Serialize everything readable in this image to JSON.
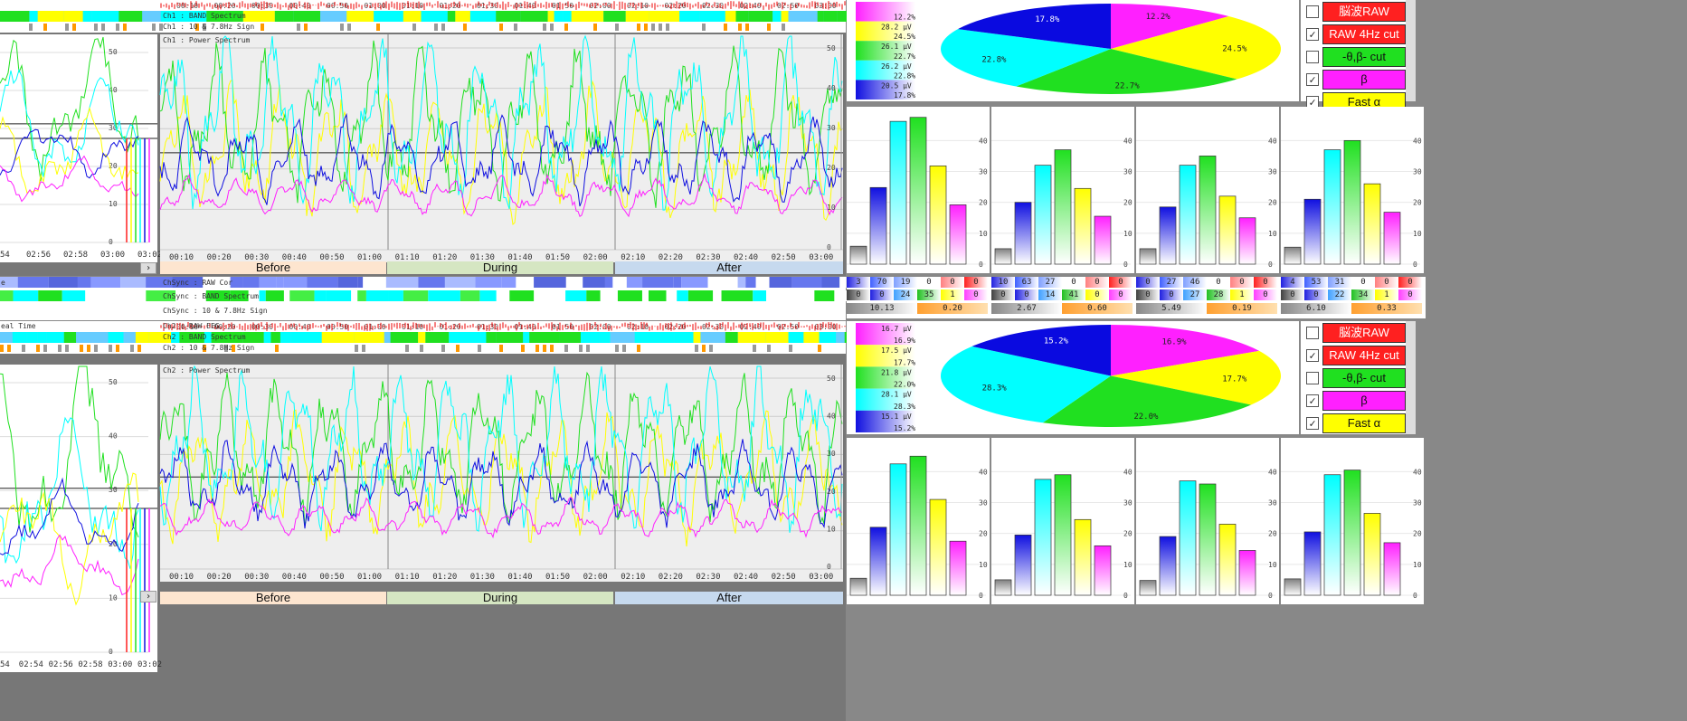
{
  "ch1": {
    "band_label": "Ch1 : BAND Spectrum",
    "sign_label": "Ch1 : 10 & 7.8Hz Sign",
    "power_label": "Ch1 : Power Spectrum",
    "top_times": [
      "00:10",
      "00:20",
      "00:30",
      "00:40",
      "00:50",
      "01:00",
      "01:10",
      "01:20",
      "01:30",
      "01:40",
      "01:50",
      "02:00",
      "02:10",
      "02:20",
      "02:30",
      "02:40",
      "02:50",
      "03:00"
    ],
    "x_ticks": [
      "00:10",
      "00:20",
      "00:30",
      "00:40",
      "00:50",
      "01:00",
      "01:10",
      "01:20",
      "01:30",
      "01:40",
      "01:50",
      "02:00",
      "02:10",
      "02:20",
      "02:30",
      "02:40",
      "02:50",
      "03:00"
    ],
    "left_x_ticks": [
      "54",
      "02:56",
      "02:58",
      "03:00",
      "03:02"
    ],
    "y_ticks": [
      "50",
      "40",
      "30",
      "20",
      "10",
      "0"
    ],
    "phases": [
      "Before",
      "During",
      "After"
    ]
  },
  "ch2": {
    "raw_label": "Ch2 : RAW EEG",
    "band_label": "Ch2 : BAND Spectrum",
    "sign_label": "Ch2 : 10 & 7.8Hz Sign",
    "power_label": "Ch2 : Power Spectrum",
    "left_raw_label": "eal Time",
    "left_x_ticks": [
      "54",
      "02:54",
      "02:56",
      "02:58",
      "03:00",
      "03:02"
    ],
    "phases": [
      "Before",
      "During",
      "After"
    ]
  },
  "sync": {
    "raw_label": "ChSync : RAW Cor",
    "band_label": "ChSync : BAND Spectrum",
    "sign_label": "ChSync : 10 & 7.8Hz Sign",
    "left_label": "e"
  },
  "colors": {
    "red": "#ff2020",
    "yellow": "#ffff00",
    "green": "#20e020",
    "cyan": "#00ffff",
    "blue": "#1010e0",
    "magenta": "#ff20ff",
    "gray": "#808080"
  },
  "pie1": {
    "values": [
      {
        "label": "12.2%",
        "value": 12.2,
        "color": "#ff20ff"
      },
      {
        "label": "24.5%",
        "value": 24.5,
        "color": "#ffff00"
      },
      {
        "label": "22.7%",
        "value": 22.7,
        "color": "#20e020"
      },
      {
        "label": "22.8%",
        "value": 22.8,
        "color": "#00ffff"
      },
      {
        "label": "17.8%",
        "value": 17.8,
        "color": "#0a0ae0"
      }
    ],
    "legend": [
      {
        "uv": "",
        "pct": "12.2%",
        "color": "#ff20ff"
      },
      {
        "uv": "28.2 μV",
        "pct": "24.5%",
        "color": "#ffff00"
      },
      {
        "uv": "26.1 μV",
        "pct": "22.7%",
        "color": "#20e020"
      },
      {
        "uv": "26.2 μV",
        "pct": "22.8%",
        "color": "#00ffff"
      },
      {
        "uv": "20.5 μV",
        "pct": "17.8%",
        "color": "#1010e0"
      }
    ]
  },
  "pie2": {
    "values": [
      {
        "label": "16.9%",
        "value": 16.9,
        "color": "#ff20ff"
      },
      {
        "label": "17.7%",
        "value": 17.7,
        "color": "#ffff00"
      },
      {
        "label": "22.0%",
        "value": 22.0,
        "color": "#20e020"
      },
      {
        "label": "28.3%",
        "value": 28.3,
        "color": "#00ffff"
      },
      {
        "label": "15.2%",
        "value": 15.2,
        "color": "#0a0ae0"
      }
    ],
    "legend": [
      {
        "uv": "16.7 μV",
        "pct": "16.9%",
        "color": "#ff20ff"
      },
      {
        "uv": "17.5 μV",
        "pct": "17.7%",
        "color": "#ffff00"
      },
      {
        "uv": "21.8 μV",
        "pct": "22.0%",
        "color": "#20e020"
      },
      {
        "uv": "28.1 μV",
        "pct": "28.3%",
        "color": "#00ffff"
      },
      {
        "uv": "15.1 μV",
        "pct": "15.2%",
        "color": "#1010e0"
      }
    ]
  },
  "controls1": [
    {
      "label": "脳波RAW",
      "checked": false,
      "color": "#ff2020",
      "text": "#ffffff"
    },
    {
      "label": "RAW 4Hz cut",
      "checked": true,
      "color": "#ff2020",
      "text": "#ffffff"
    },
    {
      "label": "-θ,β- cut",
      "checked": false,
      "color": "#20e020",
      "text": "#111111"
    },
    {
      "label": "β",
      "checked": true,
      "color": "#ff20ff",
      "text": "#111111"
    },
    {
      "label": "Fast α",
      "checked": true,
      "color": "#ffff00",
      "text": "#111111"
    }
  ],
  "controls2": [
    {
      "label": "脳波RAW",
      "checked": false,
      "color": "#ff2020",
      "text": "#ffffff"
    },
    {
      "label": "RAW 4Hz cut",
      "checked": true,
      "color": "#ff2020",
      "text": "#ffffff"
    },
    {
      "label": "-θ,β- cut",
      "checked": false,
      "color": "#20e020",
      "text": "#111111"
    },
    {
      "label": "β",
      "checked": true,
      "color": "#ff20ff",
      "text": "#111111"
    },
    {
      "label": "Fast α",
      "checked": true,
      "color": "#ffff00",
      "text": "#111111"
    }
  ],
  "bars_y_ticks": [
    "40",
    "30",
    "20",
    "10",
    "0"
  ],
  "bars1": [
    [
      5.8,
      24.8,
      46.2,
      47.5,
      31.8,
      19.2
    ],
    [
      5,
      20,
      32,
      37,
      24.5,
      15.5
    ],
    [
      5,
      18.5,
      32,
      35,
      22,
      15
    ],
    [
      5.5,
      21,
      37,
      40,
      26,
      16.8
    ]
  ],
  "bars2": [
    [
      5.5,
      22,
      42.5,
      45,
      31,
      17.5
    ],
    [
      5,
      19.5,
      37.5,
      39,
      24.5,
      16
    ],
    [
      4.8,
      19,
      37,
      36,
      23,
      14.5
    ],
    [
      5.3,
      20.5,
      39,
      40.5,
      26.5,
      17
    ]
  ],
  "sync_tables": [
    {
      "row1": [
        "3",
        "70",
        "19",
        "0",
        "0",
        "0"
      ],
      "row2": [
        "0",
        "0",
        "24",
        "35",
        "1",
        "0"
      ],
      "row3": [
        "10.13",
        "0.20"
      ]
    },
    {
      "row1": [
        "10",
        "63",
        "27",
        "0",
        "0",
        "0"
      ],
      "row2": [
        "0",
        "0",
        "14",
        "41",
        "0",
        "0"
      ],
      "row3": [
        "2.67",
        "0.60"
      ]
    },
    {
      "row1": [
        "0",
        "27",
        "46",
        "0",
        "0",
        "0"
      ],
      "row2": [
        "0",
        "0",
        "27",
        "28",
        "1",
        "0"
      ],
      "row3": [
        "5.49",
        "0.19"
      ]
    },
    {
      "row1": [
        "4",
        "53",
        "31",
        "0",
        "0",
        "0"
      ],
      "row2": [
        "0",
        "0",
        "22",
        "34",
        "1",
        "0"
      ],
      "row3": [
        "6.10",
        "0.33"
      ]
    }
  ],
  "bar_colors": [
    "#808080",
    "#1010e0",
    "#00ffff",
    "#20e020",
    "#ffff00",
    "#ff20ff"
  ]
}
